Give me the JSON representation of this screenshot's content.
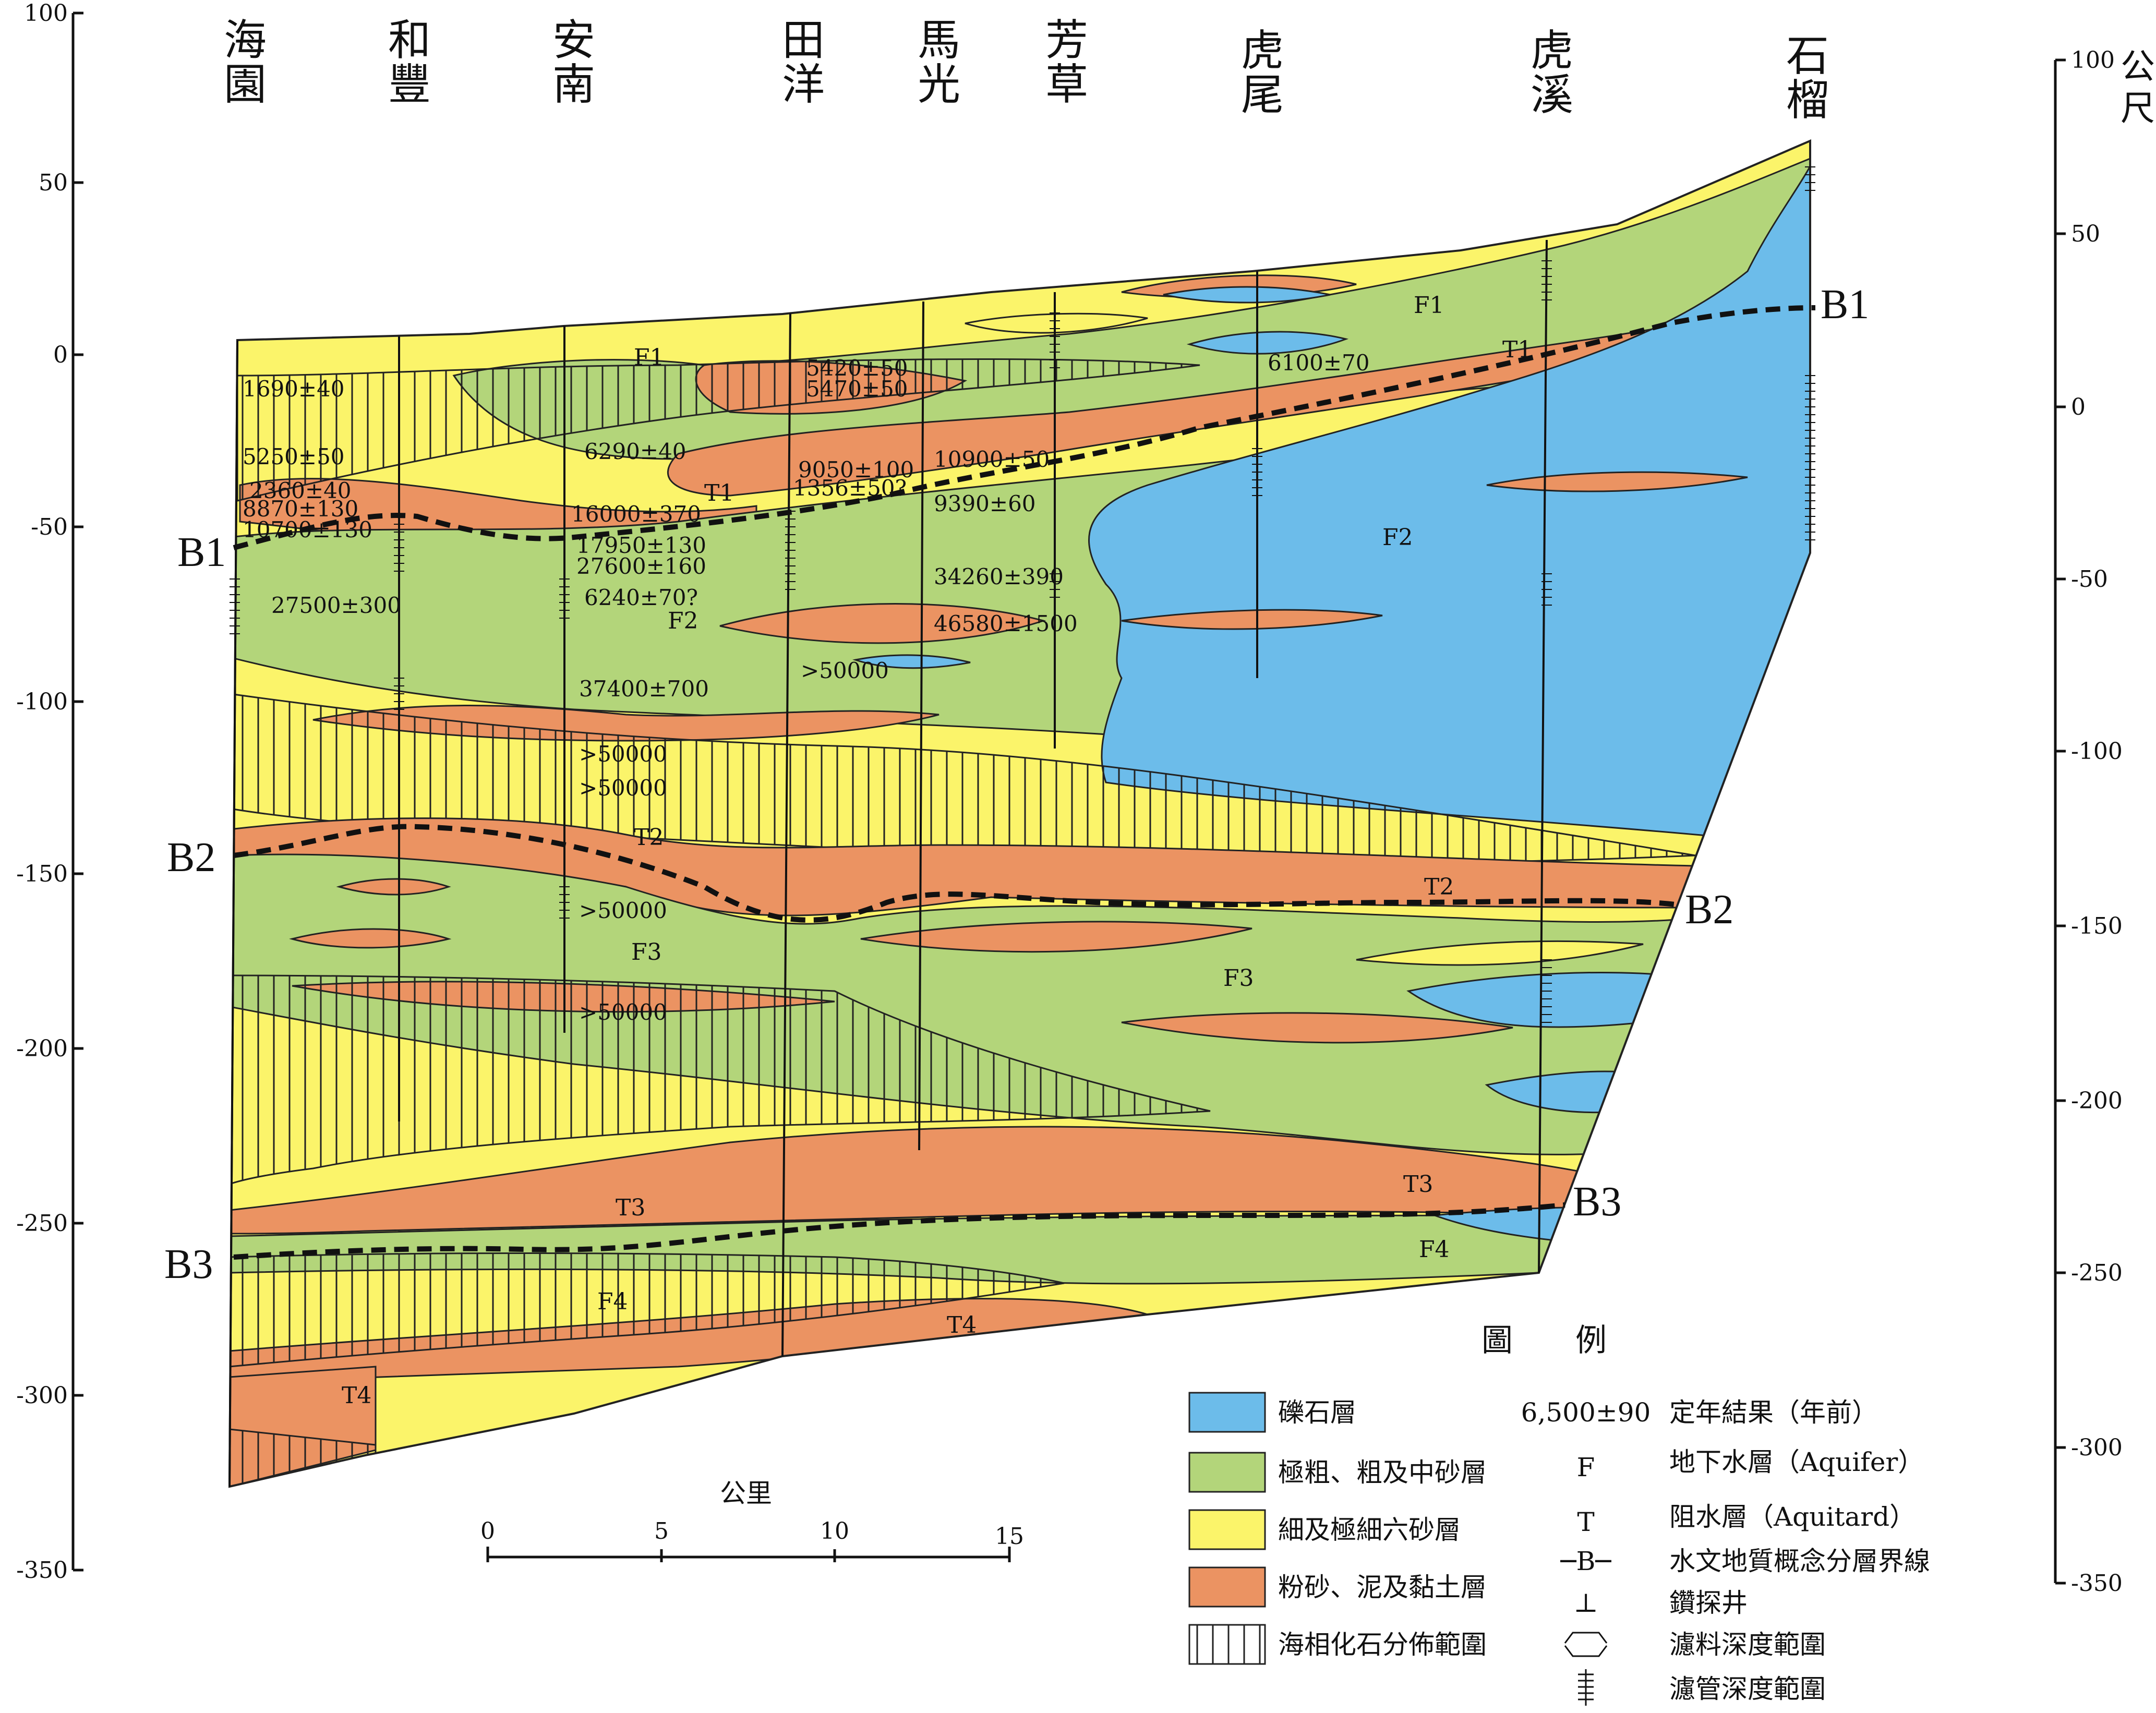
{
  "stations": [
    {
      "id": "haiyuan",
      "chars": [
        "海",
        "園"
      ]
    },
    {
      "id": "hefeng",
      "chars": [
        "和",
        "豐"
      ]
    },
    {
      "id": "annan",
      "chars": [
        "安",
        "南"
      ]
    },
    {
      "id": "tianyang",
      "chars": [
        "田",
        "洋"
      ]
    },
    {
      "id": "maguang",
      "chars": [
        "馬",
        "光"
      ]
    },
    {
      "id": "fangcao",
      "chars": [
        "芳",
        "草"
      ]
    },
    {
      "id": "huwei",
      "chars": [
        "虎",
        "尾"
      ]
    },
    {
      "id": "huxi",
      "chars": [
        "虎",
        "溪"
      ]
    },
    {
      "id": "shiliu",
      "chars": [
        "石",
        "榴"
      ]
    }
  ],
  "axis": {
    "left_ticks": [
      "100",
      "50",
      "0",
      "-50",
      "-100",
      "-150",
      "-200",
      "-250",
      "-300",
      "-350"
    ],
    "right_ticks": [
      "100",
      "50",
      "0",
      "-50",
      "-100",
      "-150",
      "-200",
      "-250",
      "-300",
      "-350"
    ],
    "right_unit": [
      "公",
      "尺"
    ],
    "range": [
      -350,
      100
    ]
  },
  "boundaries": {
    "b1_left": "B1",
    "b1_right": "B1",
    "b2_left": "B2",
    "b2_right": "B2",
    "b3_left": "B3",
    "b3_right": "B3"
  },
  "layer_labels": {
    "f1a": "F1",
    "f1b": "F1",
    "t1a": "T1",
    "t1b": "T1",
    "f2a": "F2",
    "f2b": "F2",
    "t2a": "T2",
    "t2b": "T2",
    "f3a": "F3",
    "f3b": "F3",
    "t3a": "T3",
    "t3b": "T3",
    "f4a": "F4",
    "f4b": "F4",
    "t4a": "T4",
    "t4b": "T4"
  },
  "dates": {
    "d1": "1690±40",
    "d2": "5250±50",
    "d3": "2360±40",
    "d4": "8870±130",
    "d5": "10700±130",
    "d6": "27500±300",
    "d7": "6290±40",
    "d8": "16000±370",
    "d9": "17950±130",
    "d10": "27600±160",
    "d11": "6240±70?",
    "d12": "37400±700",
    "d13": ">50000",
    "d14": ">50000",
    "d15": ">50000",
    "d16": ">50000",
    "d17": "5420±50",
    "d18": "5470±50",
    "d19": "9050±100",
    "d20": "1356±50?",
    "d21": "10900±50",
    "d22": "9390±60",
    "d23": "34260±390",
    "d24": "46580±1500",
    "d25": ">50000",
    "d26": "6100±70"
  },
  "scale": {
    "title": "公里",
    "ticks": [
      "0",
      "5",
      "10",
      "15"
    ]
  },
  "legend": {
    "title": "圖　　例",
    "items": [
      {
        "label": "礫石層",
        "color": "#6cbcea"
      },
      {
        "label": "極粗、粗及中砂層",
        "color": "#b3d57a"
      },
      {
        "label": "細及極細六砂層",
        "color": "#fbf46a"
      },
      {
        "label": "粉砂、泥及黏土層",
        "color": "#eb9362"
      },
      {
        "label": "海相化石分佈範圍",
        "color": "#ffffff"
      }
    ],
    "symbols": [
      {
        "sym": "6,500±90",
        "label": "定年結果（年前）"
      },
      {
        "sym": "F",
        "label": "地下水層（Aquifer）"
      },
      {
        "sym": "T",
        "label": "阻水層（Aquitard）"
      },
      {
        "sym": "─B─",
        "label": "水文地質概念分層界線"
      },
      {
        "sym": "⊥",
        "label": "鑽探井"
      },
      {
        "sym": "",
        "label": "濾料深度範圍"
      },
      {
        "sym": "",
        "label": "濾管深度範圍"
      }
    ]
  }
}
